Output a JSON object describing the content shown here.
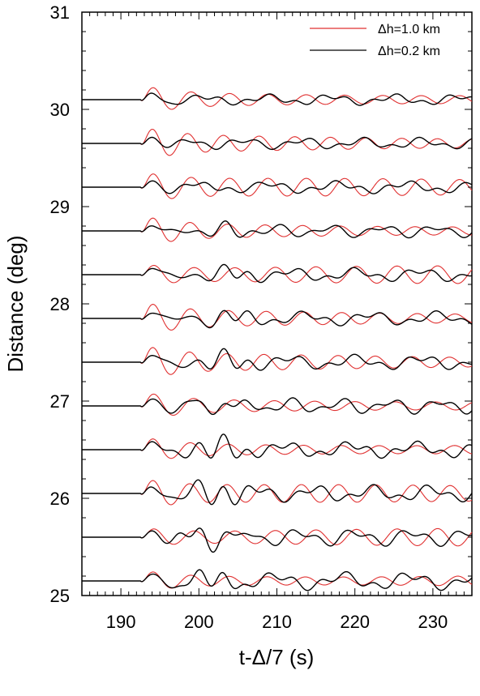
{
  "chart_data": {
    "type": "line",
    "title": "",
    "xlabel": "t-Δ/7 (s)",
    "ylabel": "Distance (deg)",
    "xlim": [
      185,
      235
    ],
    "ylim": [
      25,
      31
    ],
    "x_ticks": [
      190,
      200,
      210,
      220,
      230
    ],
    "x_tick_labels": [
      "190",
      "200",
      "210",
      "220",
      "230"
    ],
    "y_ticks": [
      25,
      26,
      27,
      28,
      29,
      30,
      31
    ],
    "y_tick_labels": [
      "25",
      "26",
      "27",
      "28",
      "29",
      "30",
      "31"
    ],
    "grid": false,
    "legend_position": "top-right",
    "trace_offsets_deg": [
      25.15,
      25.6,
      26.05,
      26.5,
      26.95,
      27.4,
      27.85,
      28.3,
      28.75,
      29.2,
      29.65,
      30.1
    ],
    "onset_time_s": 192.5,
    "series": [
      {
        "name": "Δh=1.0 km",
        "color": "#e03030"
      },
      {
        "name": "Δh=0.2 km",
        "color": "#000000"
      }
    ]
  }
}
